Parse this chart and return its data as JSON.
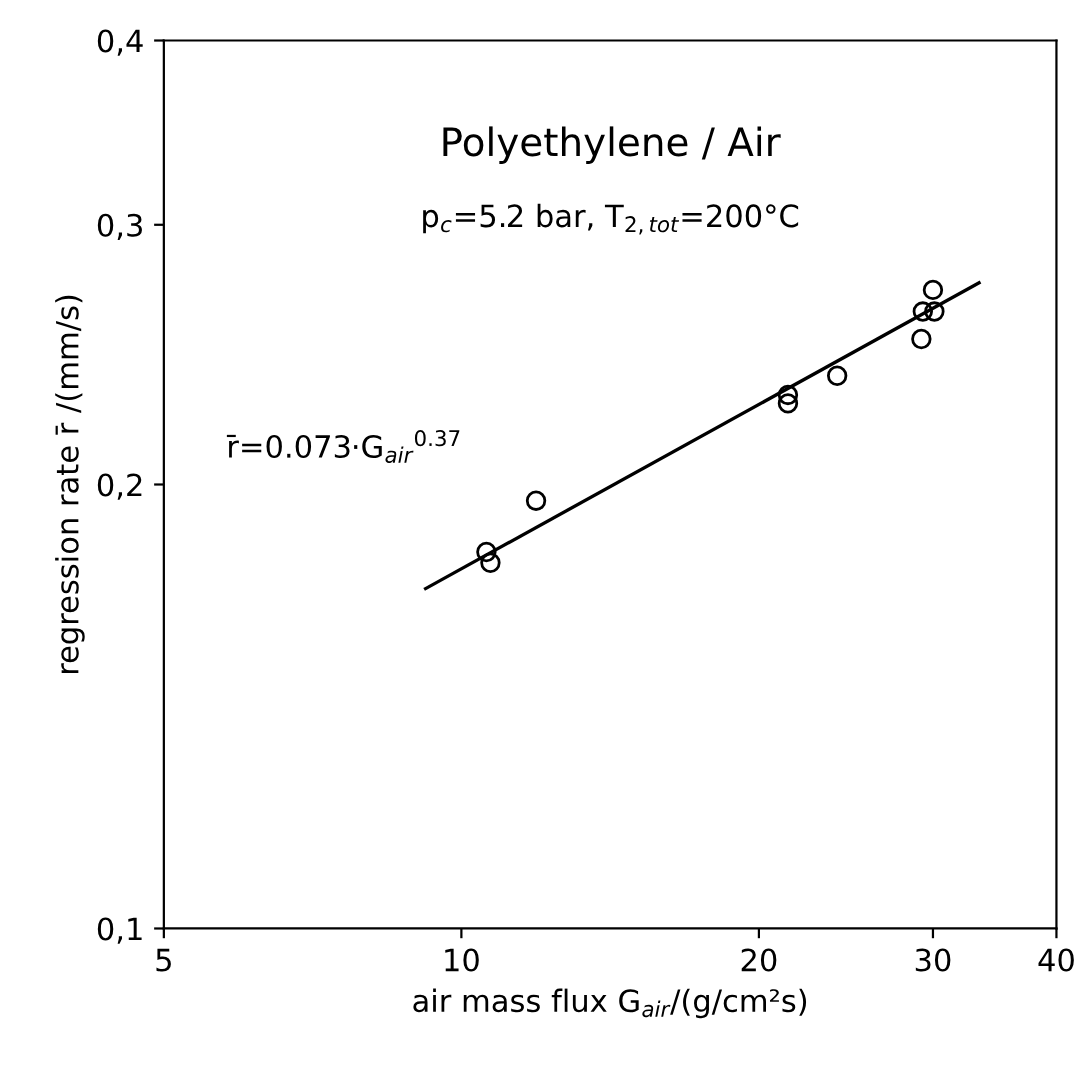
{
  "chart_data": {
    "type": "scatter",
    "xlabel": "air mass flux G$_{air}$/(g/cm²s)",
    "ylabel": "regression rate r̄ /(mm/s)",
    "annotations": [
      "Polyethylene / Air",
      "p$_{c}$=5.2 bar, T$_{2,tot}$=200°C",
      "r̄=0.073·G$_{air}$$^{0.37}$"
    ],
    "log": "xy",
    "xlim": [
      5,
      40
    ],
    "xticks": [
      5,
      10,
      20,
      30,
      40
    ],
    "ylim": [
      0.1,
      0.4
    ],
    "yticks": [
      {
        "value": 0.1,
        "label": "0,1"
      },
      {
        "value": 0.2,
        "label": "0,2"
      },
      {
        "value": 0.3,
        "label": "0,3"
      },
      {
        "value": 0.4,
        "label": "0,4"
      }
    ],
    "grid": false,
    "legend": false,
    "series": [
      {
        "marker": "circle",
        "color": "#000000",
        "x": [
          10.6,
          10.7,
          11.9,
          21.4,
          21.4,
          24.0,
          29.2,
          29.3,
          30.1,
          30.0
        ],
        "values": [
          0.18,
          0.177,
          0.195,
          0.23,
          0.227,
          0.237,
          0.251,
          0.262,
          0.262,
          0.271
        ]
      },
      {
        "type": "line",
        "marker": "none",
        "line_style": "solid",
        "color": "#000000",
        "x": [
          9.2,
          33.4
        ],
        "values": [
          0.17,
          0.274
        ]
      }
    ]
  }
}
